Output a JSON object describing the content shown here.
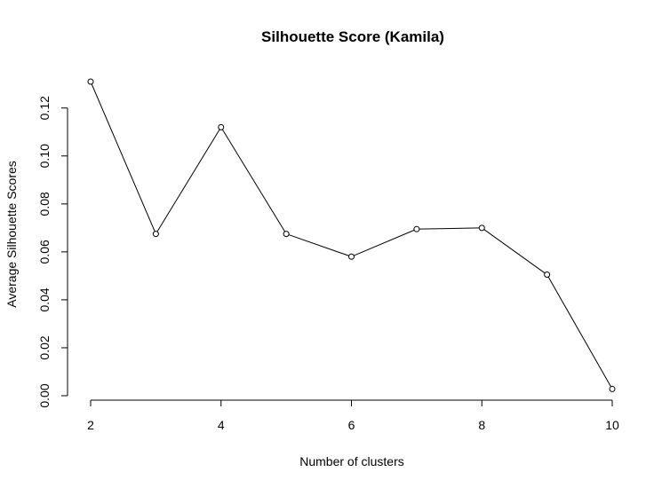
{
  "chart_data": {
    "type": "line",
    "title": "Silhouette Score (Kamila)",
    "xlabel": "Number of clusters",
    "ylabel": "Average Silhouette Scores",
    "x": [
      2,
      3,
      4,
      5,
      6,
      7,
      8,
      9,
      10
    ],
    "series": [
      {
        "values": [
          0.131,
          0.0675,
          0.112,
          0.0675,
          0.058,
          0.0695,
          0.07,
          0.0505,
          0.0028
        ]
      }
    ],
    "xticks": [
      "2",
      "4",
      "6",
      "8",
      "10"
    ],
    "yticks": [
      "0.00",
      "0.02",
      "0.04",
      "0.06",
      "0.08",
      "0.10",
      "0.12"
    ],
    "xlim": [
      2,
      10
    ],
    "ylim": [
      0,
      0.131
    ],
    "grid": false,
    "markers": "open-circle",
    "line_color": "#000000"
  }
}
